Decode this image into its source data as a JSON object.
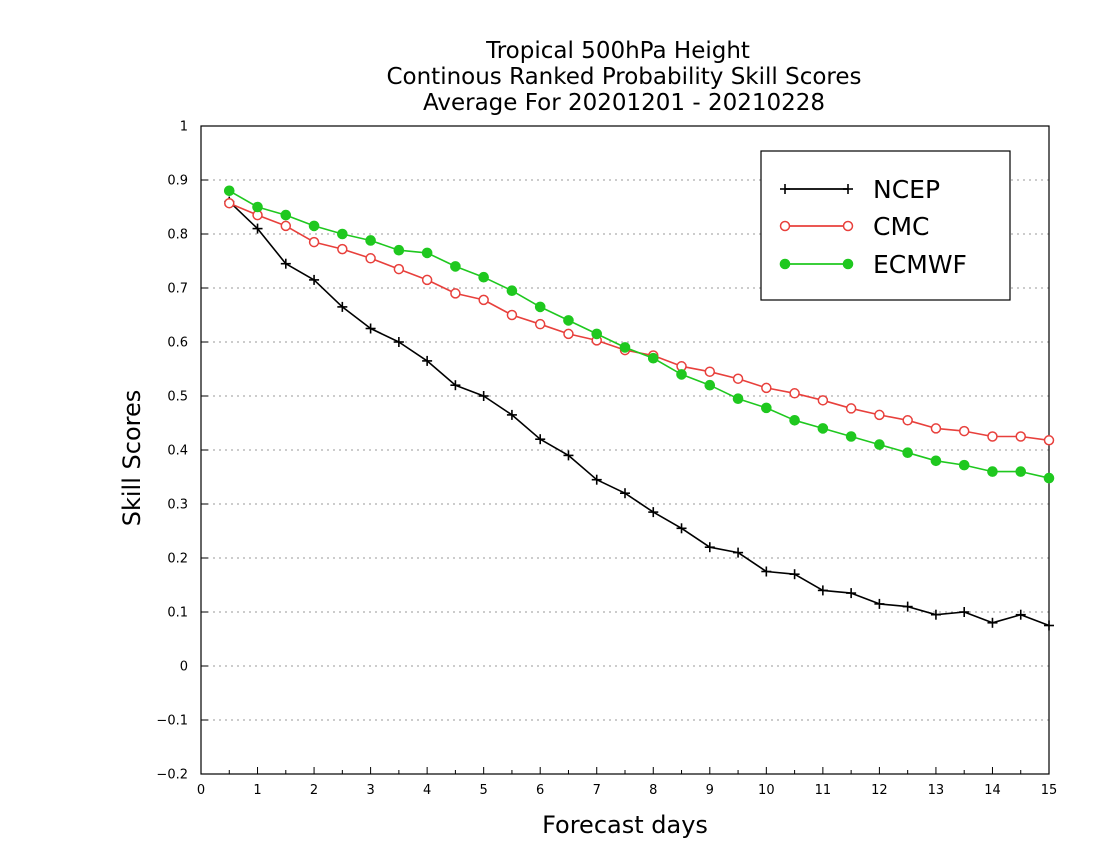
{
  "chart_data": {
    "type": "line",
    "title_lines": [
      "Tropical 500hPa Height",
      "Continous Ranked Probability Skill Scores",
      "Average For 20201201 - 20210228"
    ],
    "xlabel": "Forecast days",
    "ylabel": "Skill Scores",
    "xlim": [
      0,
      15
    ],
    "ylim": [
      -0.2,
      1
    ],
    "x_ticks": [
      0,
      1,
      2,
      3,
      4,
      5,
      6,
      7,
      8,
      9,
      10,
      11,
      12,
      13,
      14,
      15
    ],
    "x_tick_labels": [
      "0",
      "1",
      "2",
      "3",
      "4",
      "5",
      "6",
      "7",
      "8",
      "9",
      "10",
      "11",
      "12",
      "13",
      "14",
      "15"
    ],
    "y_ticks": [
      -0.2,
      -0.1,
      0,
      0.1,
      0.2,
      0.3,
      0.4,
      0.5,
      0.6,
      0.7,
      0.8,
      0.9,
      1
    ],
    "y_tick_labels": [
      "−0.2",
      "−0.1",
      "0",
      "0.1",
      "0.2",
      "0.3",
      "0.4",
      "0.5",
      "0.6",
      "0.7",
      "0.8",
      "0.9",
      "1"
    ],
    "grid": "horizontal dotted",
    "legend_position": "top-right",
    "x": [
      0.5,
      1.0,
      1.5,
      2.0,
      2.5,
      3.0,
      3.5,
      4.0,
      4.5,
      5.0,
      5.5,
      6.0,
      6.5,
      7.0,
      7.5,
      8.0,
      8.5,
      9.0,
      9.5,
      10.0,
      10.5,
      11.0,
      11.5,
      12.0,
      12.5,
      13.0,
      13.5,
      14.0,
      14.5,
      15.0
    ],
    "series": [
      {
        "name": "NCEP",
        "color": "#000000",
        "marker": "plus",
        "values": [
          0.86,
          0.81,
          0.745,
          0.715,
          0.665,
          0.625,
          0.6,
          0.565,
          0.52,
          0.5,
          0.465,
          0.42,
          0.39,
          0.345,
          0.32,
          0.285,
          0.255,
          0.22,
          0.21,
          0.175,
          0.17,
          0.14,
          0.135,
          0.115,
          0.11,
          0.095,
          0.1,
          0.08,
          0.095,
          0.075
        ]
      },
      {
        "name": "CMC",
        "color": "#e8403c",
        "marker": "open-circle",
        "values": [
          0.857,
          0.835,
          0.815,
          0.785,
          0.772,
          0.755,
          0.735,
          0.715,
          0.69,
          0.678,
          0.65,
          0.633,
          0.615,
          0.603,
          0.585,
          0.575,
          0.555,
          0.545,
          0.532,
          0.515,
          0.505,
          0.492,
          0.477,
          0.465,
          0.455,
          0.44,
          0.435,
          0.425,
          0.425,
          0.418
        ]
      },
      {
        "name": "ECMWF",
        "color": "#1fc81f",
        "marker": "filled-circle",
        "values": [
          0.88,
          0.85,
          0.835,
          0.815,
          0.8,
          0.788,
          0.77,
          0.765,
          0.74,
          0.72,
          0.695,
          0.665,
          0.64,
          0.615,
          0.59,
          0.57,
          0.54,
          0.52,
          0.495,
          0.478,
          0.455,
          0.44,
          0.425,
          0.41,
          0.395,
          0.38,
          0.372,
          0.36,
          0.36,
          0.348
        ]
      }
    ]
  }
}
